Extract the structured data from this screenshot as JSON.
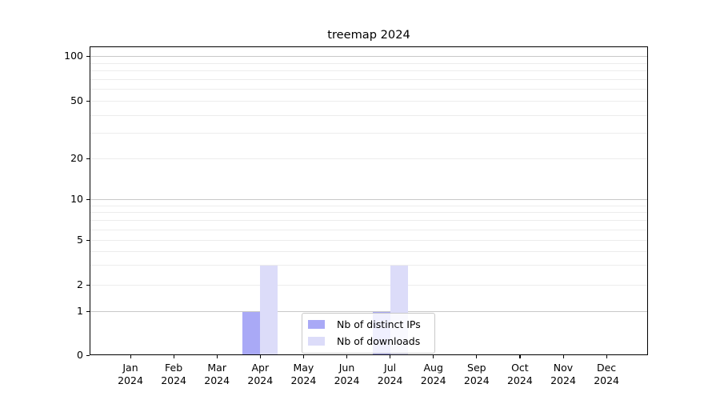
{
  "figure": {
    "title": "treemap 2024"
  },
  "chart_data": {
    "type": "bar",
    "title": "treemap 2024",
    "x_categories": [
      "Jan",
      "Feb",
      "Mar",
      "Apr",
      "May",
      "Jun",
      "Jul",
      "Aug",
      "Sep",
      "Oct",
      "Nov",
      "Dec"
    ],
    "x_year": "2024",
    "xlabel": "",
    "ylabel": "",
    "yscale": "symlog",
    "ylim": [
      0,
      117
    ],
    "y_ticks": [
      0,
      1,
      2,
      5,
      10,
      20,
      50,
      100
    ],
    "grid": true,
    "legend_position": "lower-center-inside",
    "series": [
      {
        "name": "Nb of distinct IPs",
        "color": "#a9a9f6",
        "values": [
          0,
          0,
          0,
          1,
          0,
          0,
          1,
          0,
          0,
          0,
          0,
          0
        ]
      },
      {
        "name": "Nb of downloads",
        "color": "#dcdcf9",
        "values": [
          0,
          0,
          0,
          3,
          0,
          0,
          3,
          0,
          0,
          0,
          0,
          0
        ]
      }
    ]
  },
  "colors": {
    "grid_major": "#c8c8c8",
    "grid_minor": "#ececec",
    "axis": "#000000",
    "legend_border": "#c9c9c9"
  }
}
